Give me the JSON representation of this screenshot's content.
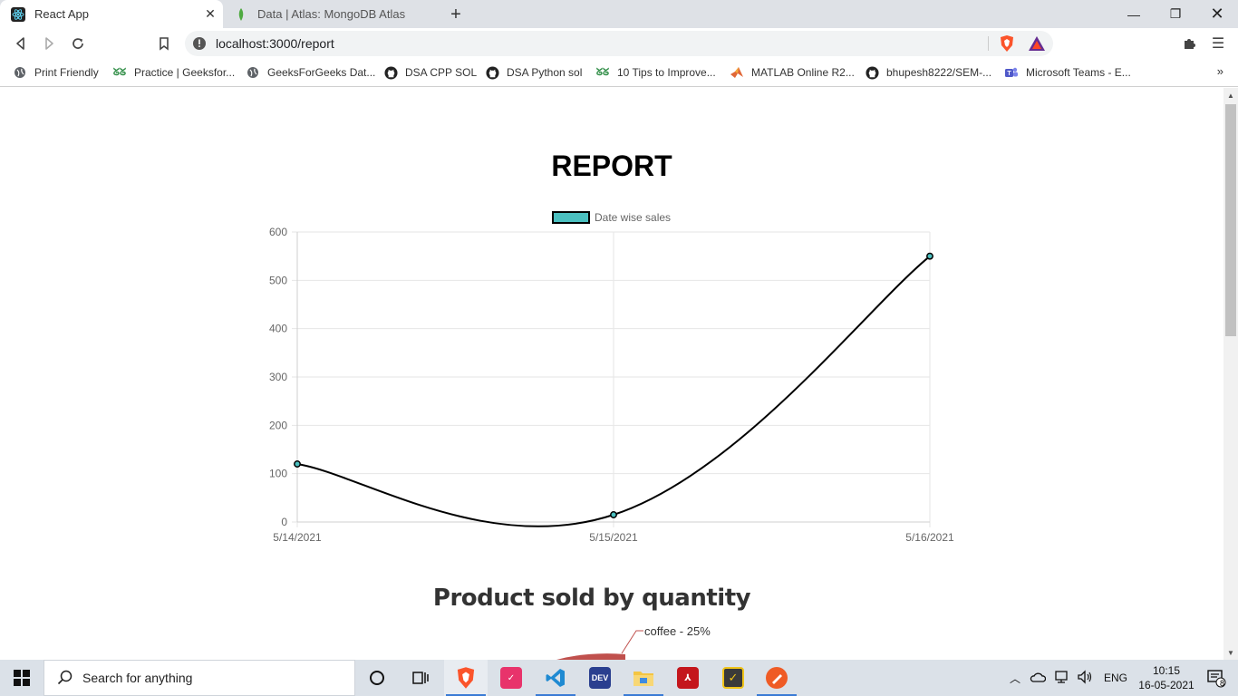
{
  "browser": {
    "tabs": [
      {
        "title": "React App",
        "icon": "react-icon",
        "active": true
      },
      {
        "title": "Data | Atlas: MongoDB Atlas",
        "icon": "mongodb-leaf-icon",
        "active": false
      }
    ],
    "url": "localhost:3000/report",
    "bookmarks": [
      {
        "label": "Print Friendly",
        "icon": "globe-icon"
      },
      {
        "label": "Practice | Geeksfor...",
        "icon": "gfg-icon"
      },
      {
        "label": "GeeksForGeeks Dat...",
        "icon": "globe-icon"
      },
      {
        "label": "DSA CPP SOL",
        "icon": "github-icon"
      },
      {
        "label": "DSA Python sol",
        "icon": "github-icon"
      },
      {
        "label": "10 Tips to Improve...",
        "icon": "gfg-icon"
      },
      {
        "label": "MATLAB Online R2...",
        "icon": "matlab-icon"
      },
      {
        "label": "bhupesh8222/SEM-...",
        "icon": "github-icon"
      },
      {
        "label": "Microsoft Teams - E...",
        "icon": "teams-icon"
      }
    ],
    "more_bookmarks": "»"
  },
  "page": {
    "title": "REPORT",
    "pie_title": "Product sold by quantity",
    "pie_label": "coffee - 25%"
  },
  "chart_data": {
    "type": "line",
    "title": "",
    "legend": {
      "position": "top",
      "entries": [
        "Date wise sales"
      ]
    },
    "categories": [
      "5/14/2021",
      "5/15/2021",
      "5/16/2021"
    ],
    "series": [
      {
        "name": "Date wise sales",
        "values": [
          120,
          15,
          550
        ]
      }
    ],
    "ylim": [
      0,
      600
    ],
    "yticks": [
      0,
      100,
      200,
      300,
      400,
      500,
      600
    ],
    "grid": true,
    "colors": {
      "line": "#000000",
      "point_fill": "#4bc0c0",
      "legend_fill": "#4bc0c0",
      "grid": "#e6e6e6",
      "tick_text": "#666666"
    }
  },
  "taskbar": {
    "search_placeholder": "Search for anything",
    "language": "ENG",
    "time": "10:15",
    "date": "16-05-2021",
    "notification_count": "8"
  }
}
